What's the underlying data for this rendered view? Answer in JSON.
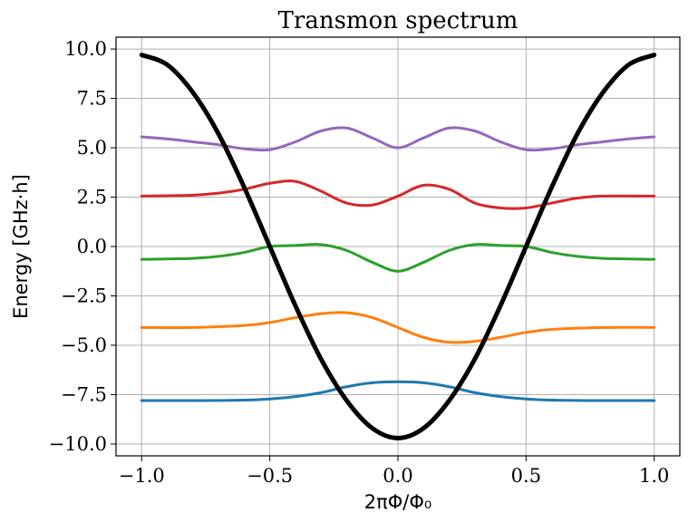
{
  "chart_data": {
    "type": "line",
    "title": "Transmon spectrum",
    "xlabel": "2πΦ/Φ₀",
    "ylabel": "Energy [GHz·h]",
    "xlim": [
      -1.1,
      1.1
    ],
    "ylim": [
      -10.6,
      10.6
    ],
    "xticks": [
      -1.0,
      -0.5,
      0.0,
      0.5,
      1.0
    ],
    "xtick_labels": [
      "−1.0",
      "−0.5",
      "0.0",
      "0.5",
      "1.0"
    ],
    "yticks": [
      -10.0,
      -7.5,
      -5.0,
      -2.5,
      0.0,
      2.5,
      5.0,
      7.5,
      10.0
    ],
    "ytick_labels": [
      "−10.0",
      "−7.5",
      "−5.0",
      "−2.5",
      "0.0",
      "2.5",
      "5.0",
      "7.5",
      "10.0"
    ],
    "grid": true,
    "legend": "none",
    "series": [
      {
        "color": "#000000",
        "x": [
          -1.0,
          -0.9,
          -0.8,
          -0.7,
          -0.6,
          -0.5,
          -0.4,
          -0.3,
          -0.2,
          -0.1,
          0.0,
          0.1,
          0.2,
          0.3,
          0.4,
          0.5,
          0.6,
          0.7,
          0.8,
          0.9,
          1.0
        ],
        "y": [
          9.7,
          9.2,
          7.8,
          5.7,
          3.0,
          0.0,
          -3.0,
          -5.7,
          -7.8,
          -9.2,
          -9.7,
          -9.2,
          -7.8,
          -5.7,
          -3.0,
          0.0,
          3.0,
          5.7,
          7.8,
          9.2,
          9.7
        ]
      },
      {
        "color": "#1f77b4",
        "x": [
          -1.0,
          -0.8,
          -0.6,
          -0.5,
          -0.4,
          -0.3,
          -0.2,
          -0.1,
          0.0,
          0.1,
          0.2,
          0.3,
          0.4,
          0.5,
          0.6,
          0.8,
          1.0
        ],
        "y": [
          -7.8,
          -7.8,
          -7.78,
          -7.72,
          -7.6,
          -7.4,
          -7.1,
          -6.9,
          -6.85,
          -6.9,
          -7.1,
          -7.4,
          -7.6,
          -7.72,
          -7.78,
          -7.8,
          -7.8
        ]
      },
      {
        "color": "#ff7f0e",
        "x": [
          -1.0,
          -0.8,
          -0.6,
          -0.5,
          -0.4,
          -0.3,
          -0.2,
          -0.1,
          0.0,
          0.1,
          0.2,
          0.3,
          0.4,
          0.5,
          0.6,
          0.8,
          1.0
        ],
        "y": [
          -4.1,
          -4.1,
          -4.0,
          -3.85,
          -3.6,
          -3.4,
          -3.35,
          -3.6,
          -4.1,
          -4.6,
          -4.85,
          -4.8,
          -4.6,
          -4.35,
          -4.2,
          -4.1,
          -4.1
        ]
      },
      {
        "color": "#2ca02c",
        "x": [
          -1.0,
          -0.8,
          -0.7,
          -0.6,
          -0.5,
          -0.4,
          -0.3,
          -0.2,
          -0.1,
          0.0,
          0.1,
          0.2,
          0.3,
          0.4,
          0.5,
          0.6,
          0.7,
          0.8,
          1.0
        ],
        "y": [
          -0.65,
          -0.6,
          -0.5,
          -0.3,
          0.0,
          0.05,
          0.1,
          -0.2,
          -0.8,
          -1.25,
          -0.8,
          -0.2,
          0.1,
          0.05,
          0.0,
          -0.3,
          -0.5,
          -0.6,
          -0.65
        ]
      },
      {
        "color": "#d62728",
        "x": [
          -1.0,
          -0.8,
          -0.7,
          -0.6,
          -0.5,
          -0.4,
          -0.3,
          -0.2,
          -0.1,
          0.0,
          0.1,
          0.2,
          0.3,
          0.4,
          0.5,
          0.6,
          0.7,
          0.8,
          1.0
        ],
        "y": [
          2.55,
          2.6,
          2.7,
          2.9,
          3.2,
          3.3,
          2.8,
          2.2,
          2.1,
          2.55,
          3.1,
          2.9,
          2.2,
          1.95,
          1.95,
          2.2,
          2.45,
          2.55,
          2.55
        ]
      },
      {
        "color": "#9467bd",
        "x": [
          -1.0,
          -0.9,
          -0.8,
          -0.7,
          -0.6,
          -0.5,
          -0.4,
          -0.3,
          -0.2,
          -0.1,
          0.0,
          0.1,
          0.2,
          0.3,
          0.4,
          0.5,
          0.6,
          0.7,
          0.8,
          0.9,
          1.0
        ],
        "y": [
          5.55,
          5.45,
          5.3,
          5.15,
          4.95,
          4.9,
          5.3,
          5.85,
          6.0,
          5.5,
          5.0,
          5.5,
          6.0,
          5.85,
          5.3,
          4.9,
          4.95,
          5.15,
          5.3,
          5.45,
          5.55
        ]
      }
    ]
  }
}
